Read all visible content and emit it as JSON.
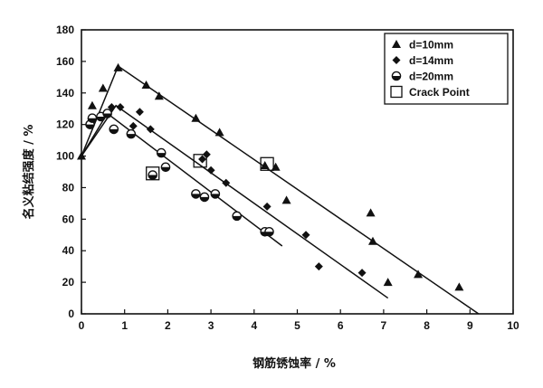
{
  "chart_data": {
    "type": "scatter",
    "xlabel": "钢筋锈蚀率 / %",
    "ylabel": "名义粘结强度 / %",
    "xlim": [
      0,
      10
    ],
    "ylim": [
      0,
      180
    ],
    "xticks": [
      "0",
      "1",
      "2",
      "3",
      "4",
      "5",
      "6",
      "7",
      "8",
      "9",
      "10"
    ],
    "yticks": [
      "0",
      "20",
      "40",
      "60",
      "80",
      "100",
      "120",
      "140",
      "160",
      "180"
    ],
    "grid": false,
    "legend_position": "top-right",
    "series": [
      {
        "name": "d=10mm",
        "marker": "triangle",
        "points": [
          [
            0.0,
            100
          ],
          [
            0.25,
            132
          ],
          [
            0.5,
            143
          ],
          [
            0.85,
            156
          ],
          [
            1.5,
            145
          ],
          [
            1.8,
            138
          ],
          [
            2.65,
            124
          ],
          [
            3.2,
            115
          ],
          [
            4.25,
            94
          ],
          [
            4.5,
            93
          ],
          [
            4.75,
            72
          ],
          [
            6.7,
            64
          ],
          [
            6.75,
            46
          ],
          [
            7.1,
            20
          ],
          [
            7.8,
            25
          ],
          [
            8.75,
            17
          ]
        ],
        "fit_line": [
          [
            0.0,
            100
          ],
          [
            0.85,
            157
          ],
          [
            9.2,
            0
          ]
        ]
      },
      {
        "name": "d=14mm",
        "marker": "diamond",
        "points": [
          [
            0.7,
            131
          ],
          [
            0.9,
            131
          ],
          [
            1.2,
            119
          ],
          [
            1.35,
            128
          ],
          [
            1.6,
            117
          ],
          [
            2.8,
            98
          ],
          [
            2.9,
            101
          ],
          [
            3.0,
            91
          ],
          [
            3.35,
            83
          ],
          [
            4.3,
            68
          ],
          [
            5.2,
            50
          ],
          [
            5.5,
            30
          ],
          [
            6.5,
            26
          ]
        ],
        "fit_line": [
          [
            0.0,
            100
          ],
          [
            0.8,
            132
          ],
          [
            7.1,
            10
          ]
        ]
      },
      {
        "name": "d=20mm",
        "marker": "circle",
        "points": [
          [
            0.2,
            120
          ],
          [
            0.25,
            124
          ],
          [
            0.45,
            125
          ],
          [
            0.6,
            127
          ],
          [
            0.75,
            117
          ],
          [
            1.15,
            114
          ],
          [
            1.65,
            88
          ],
          [
            1.85,
            102
          ],
          [
            1.95,
            93
          ],
          [
            2.65,
            76
          ],
          [
            2.85,
            74
          ],
          [
            3.1,
            76
          ],
          [
            3.6,
            62
          ],
          [
            4.25,
            52
          ],
          [
            4.35,
            52
          ]
        ],
        "fit_line": [
          [
            0.0,
            100
          ],
          [
            0.6,
            127
          ],
          [
            4.65,
            43
          ]
        ]
      }
    ],
    "crack_points": {
      "name": "Crack Point",
      "points": [
        [
          1.65,
          89
        ],
        [
          2.75,
          97
        ],
        [
          4.3,
          95
        ]
      ]
    }
  }
}
